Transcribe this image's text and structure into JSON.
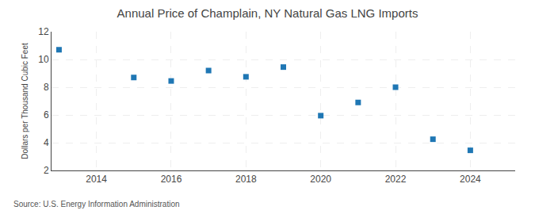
{
  "chart_data": {
    "type": "scatter",
    "title": "Annual Price of Champlain, NY Natural Gas LNG Imports",
    "ylabel": "Dollars per Thousand Cubic Feet",
    "annotations": [
      "Source: U.S. Energy Information Administration"
    ],
    "x": [
      2013,
      2015,
      2016,
      2017,
      2018,
      2019,
      2020,
      2021,
      2022,
      2023,
      2024
    ],
    "values": [
      10.7,
      8.7,
      8.45,
      9.2,
      8.75,
      9.45,
      5.95,
      6.9,
      8.0,
      4.25,
      3.45
    ],
    "xlim": [
      2012.8,
      2025.2
    ],
    "ylim": [
      2,
      12
    ],
    "xticks": [
      2014,
      2016,
      2018,
      2020,
      2022,
      2024
    ],
    "yticks": [
      2,
      4,
      6,
      8,
      10,
      12
    ],
    "grid": true,
    "marker": "square"
  }
}
